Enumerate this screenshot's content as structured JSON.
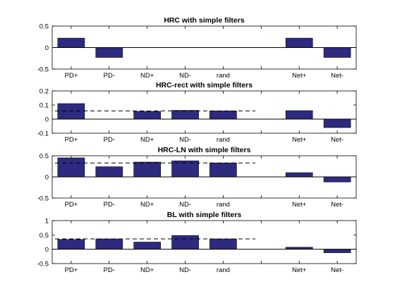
{
  "chart_data": [
    {
      "type": "bar",
      "title": "HRC with simple filters",
      "categories": [
        "PD+",
        "PD-",
        "ND+",
        "ND-",
        "rand",
        "",
        "Net+",
        "Net-"
      ],
      "values": [
        0.22,
        -0.23,
        0,
        0,
        0,
        null,
        0.22,
        -0.23
      ],
      "ylim": [
        -0.5,
        0.5
      ],
      "yticks": [
        "0.5",
        "0",
        "-0.5"
      ],
      "ytick_values": [
        0.5,
        0,
        -0.5
      ],
      "reference_line": 0,
      "colors": {
        "bar": "#2e2a80",
        "edge": "#000000"
      }
    },
    {
      "type": "bar",
      "title": "HRC-rect with simple filters",
      "categories": [
        "PD+",
        "PD-",
        "ND+",
        "ND-",
        "rand",
        "",
        "Net+",
        "Net-"
      ],
      "values": [
        0.11,
        0,
        0.055,
        0.062,
        0.058,
        null,
        0.06,
        -0.06
      ],
      "ylim": [
        -0.1,
        0.2
      ],
      "yticks": [
        "0.2",
        "0.1",
        "0",
        "-0.1"
      ],
      "ytick_values": [
        0.2,
        0.1,
        0,
        -0.1
      ],
      "reference_line": 0.058,
      "colors": {
        "bar": "#2e2a80",
        "edge": "#000000"
      }
    },
    {
      "type": "bar",
      "title": "HRC-LN with simple filters",
      "categories": [
        "PD+",
        "PD-",
        "ND+",
        "ND-",
        "rand",
        "",
        "Net+",
        "Net-"
      ],
      "values": [
        0.45,
        0.24,
        0.35,
        0.38,
        0.33,
        null,
        0.1,
        -0.12
      ],
      "ylim": [
        -0.5,
        0.5
      ],
      "yticks": [
        "0.5",
        "0",
        "-0.5"
      ],
      "ytick_values": [
        0.5,
        0,
        -0.5
      ],
      "reference_line": 0.33,
      "colors": {
        "bar": "#2e2a80",
        "edge": "#000000"
      }
    },
    {
      "type": "bar",
      "title": "BL with simple filters",
      "categories": [
        "PD+",
        "PD-",
        "ND+",
        "ND-",
        "rand",
        "",
        "Net+",
        "Net-"
      ],
      "values": [
        0.34,
        0.36,
        0.25,
        0.48,
        0.36,
        null,
        0.07,
        -0.12
      ],
      "ylim": [
        -0.5,
        1
      ],
      "yticks": [
        "1",
        "0.5",
        "0",
        "-0.5"
      ],
      "ytick_values": [
        1,
        0.5,
        0,
        -0.5
      ],
      "reference_line": 0.36,
      "colors": {
        "bar": "#2e2a80",
        "edge": "#000000"
      }
    }
  ]
}
